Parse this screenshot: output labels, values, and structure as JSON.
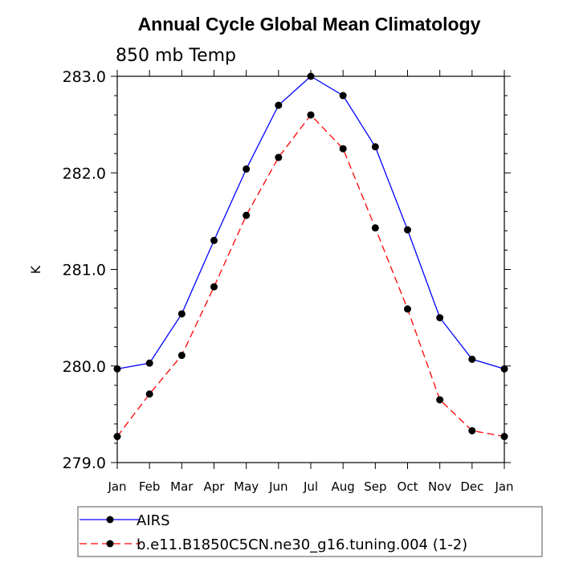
{
  "chart_data": {
    "type": "line",
    "title": "Annual Cycle Global Mean Climatology",
    "subtitle": "850 mb Temp",
    "xlabel": "",
    "ylabel": "K",
    "categories": [
      "Jan",
      "Feb",
      "Mar",
      "Apr",
      "May",
      "Jun",
      "Jul",
      "Aug",
      "Sep",
      "Oct",
      "Nov",
      "Dec",
      "Jan"
    ],
    "ylim": [
      279.0,
      283.0
    ],
    "yticks": [
      279.0,
      280.0,
      281.0,
      282.0,
      283.0
    ],
    "ytick_labels": [
      "279.0",
      "280.0",
      "281.0",
      "282.0",
      "283.0"
    ],
    "grid": false,
    "legend_position": "bottom",
    "series": [
      {
        "name": "AIRS",
        "color": "#0000ff",
        "style": "solid",
        "values": [
          279.97,
          280.03,
          280.54,
          281.3,
          282.04,
          282.7,
          283.0,
          282.8,
          282.27,
          281.41,
          280.5,
          280.07,
          279.97
        ]
      },
      {
        "name": "b.e11.B1850C5CN.ne30_g16.tuning.004 (1-2)",
        "color": "#ff0000",
        "style": "dashed",
        "values": [
          279.27,
          279.71,
          280.11,
          280.82,
          281.56,
          282.16,
          282.6,
          282.25,
          281.43,
          280.59,
          279.65,
          279.33,
          279.27
        ]
      }
    ]
  }
}
